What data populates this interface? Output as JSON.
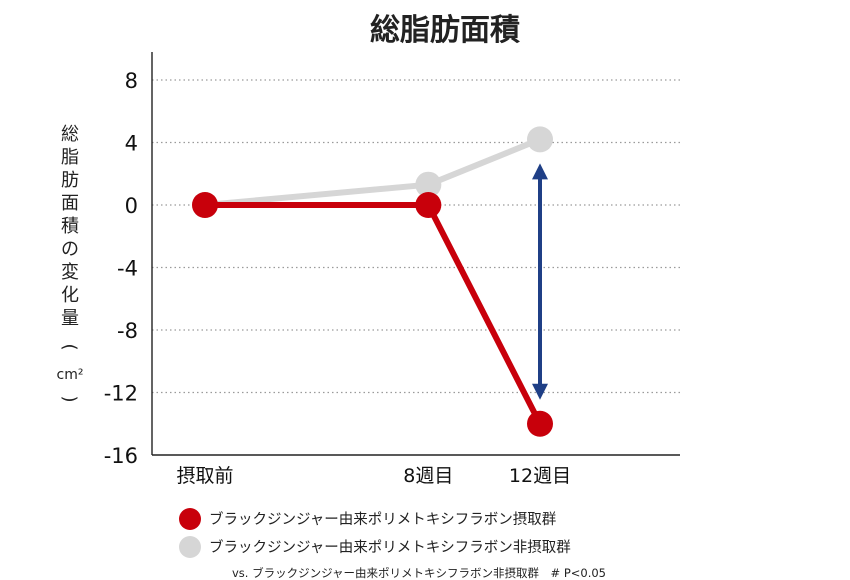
{
  "chart_data": {
    "type": "line",
    "title": "総脂肪面積",
    "ylabel_main": "総脂肪面積の変化量",
    "ylabel_unit": "cm²",
    "categories": [
      "摂取前",
      "8週目",
      "12週目"
    ],
    "x_positions_weeks": [
      0,
      8,
      12
    ],
    "ylim": [
      -16,
      8
    ],
    "yticks": [
      "8",
      "4",
      "0",
      "-4",
      "-8",
      "-12",
      "-16"
    ],
    "ytick_values": [
      8,
      4,
      0,
      -4,
      -8,
      -12,
      -16
    ],
    "grid": true,
    "series": [
      {
        "name": "ブラックジンジャー由来ポリメトキシフラボン摂取群",
        "color": "#c8000b",
        "values": [
          0,
          0,
          -14
        ]
      },
      {
        "name": "ブラックジンジャー由来ポリメトキシフラボン非摂取群",
        "color": "#d6d6d6",
        "values": [
          0,
          1.3,
          4.2
        ]
      }
    ],
    "annotation": {
      "type": "double-arrow",
      "category_index": 2,
      "from": 4.2,
      "to": -14,
      "color": "#1f3f86"
    },
    "note": "vs. ブラックジンジャー由来ポリメトキシフラボン非摂取群　# P<0.05"
  }
}
